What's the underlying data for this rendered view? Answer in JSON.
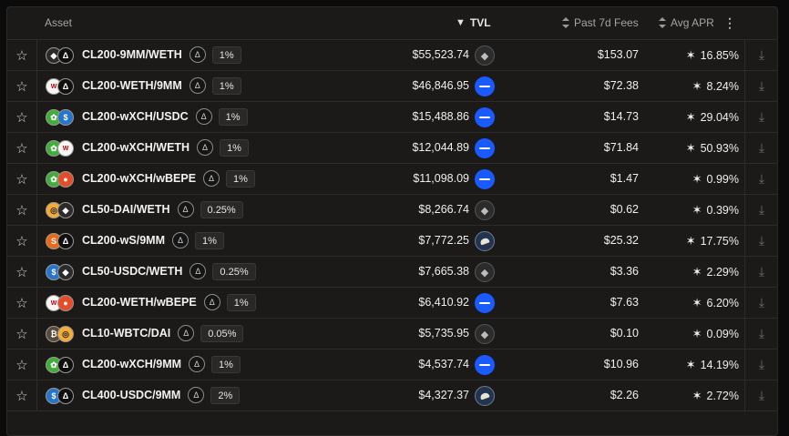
{
  "header": {
    "asset": "Asset",
    "tvl": "TVL",
    "fees": "Past 7d Fees",
    "apr": "Avg APR",
    "more_icon": "⋮"
  },
  "icons": {
    "star": "star-outline-icon",
    "download": "download-icon"
  },
  "colors": {
    "background": "#1c1a18",
    "border": "#2e2c29",
    "base_chain": "#1a5bff"
  },
  "rows": [
    {
      "name": "CL200-9MM/WETH",
      "fee": "1%",
      "tvl": "$55,523.74",
      "chain": "eth",
      "fees": "$153.07",
      "apr": "16.85%",
      "t1": "eth",
      "t2": "9mm"
    },
    {
      "name": "CL200-WETH/9MM",
      "fee": "1%",
      "tvl": "$46,846.95",
      "chain": "base",
      "fees": "$72.38",
      "apr": "8.24%",
      "t1": "weth",
      "t2": "9mm"
    },
    {
      "name": "CL200-wXCH/USDC",
      "fee": "1%",
      "tvl": "$15,488.86",
      "chain": "base",
      "fees": "$14.73",
      "apr": "29.04%",
      "t1": "xch",
      "t2": "usdc"
    },
    {
      "name": "CL200-wXCH/WETH",
      "fee": "1%",
      "tvl": "$12,044.89",
      "chain": "base",
      "fees": "$71.84",
      "apr": "50.93%",
      "t1": "xch",
      "t2": "weth"
    },
    {
      "name": "CL200-wXCH/wBEPE",
      "fee": "1%",
      "tvl": "$11,098.09",
      "chain": "base",
      "fees": "$1.47",
      "apr": "0.99%",
      "t1": "xch",
      "t2": "bepe"
    },
    {
      "name": "CL50-DAI/WETH",
      "fee": "0.25%",
      "tvl": "$8,266.74",
      "chain": "eth",
      "fees": "$0.62",
      "apr": "0.39%",
      "t1": "dai",
      "t2": "eth"
    },
    {
      "name": "CL200-wS/9MM",
      "fee": "1%",
      "tvl": "$7,772.25",
      "chain": "sonic",
      "fees": "$25.32",
      "apr": "17.75%",
      "t1": "ws",
      "t2": "9mm"
    },
    {
      "name": "CL50-USDC/WETH",
      "fee": "0.25%",
      "tvl": "$7,665.38",
      "chain": "eth",
      "fees": "$3.36",
      "apr": "2.29%",
      "t1": "usdc",
      "t2": "eth"
    },
    {
      "name": "CL200-WETH/wBEPE",
      "fee": "1%",
      "tvl": "$6,410.92",
      "chain": "base",
      "fees": "$7.63",
      "apr": "6.20%",
      "t1": "weth",
      "t2": "bepe"
    },
    {
      "name": "CL10-WBTC/DAI",
      "fee": "0.05%",
      "tvl": "$5,735.95",
      "chain": "eth",
      "fees": "$0.10",
      "apr": "0.09%",
      "t1": "wbtc",
      "t2": "dai"
    },
    {
      "name": "CL200-wXCH/9MM",
      "fee": "1%",
      "tvl": "$4,537.74",
      "chain": "base",
      "fees": "$10.96",
      "apr": "14.19%",
      "t1": "xch",
      "t2": "9mm"
    },
    {
      "name": "CL400-USDC/9MM",
      "fee": "2%",
      "tvl": "$4,327.37",
      "chain": "sonic",
      "fees": "$2.26",
      "apr": "2.72%",
      "t1": "usdc",
      "t2": "9mm"
    }
  ]
}
